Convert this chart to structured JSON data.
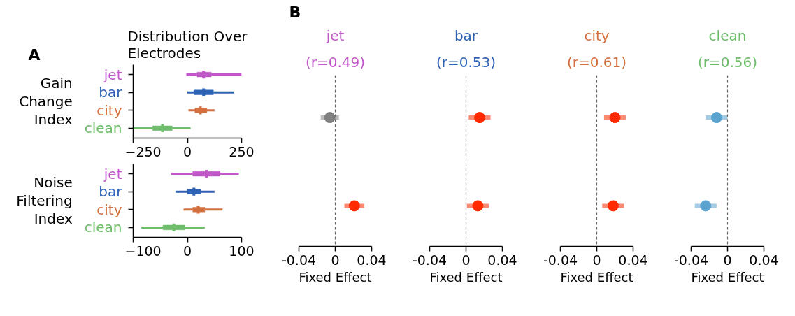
{
  "chart_data": [
    {
      "type": "box",
      "orientation": "horizontal",
      "title": "Distribution Over Electrodes",
      "ylabel": "Gain Change Index",
      "annotations": [
        "A"
      ],
      "categories": [
        "jet",
        "bar",
        "city",
        "clean"
      ],
      "colors": [
        "#c157c9",
        "#2f63b5",
        "#d4703f",
        "#6dbd6a"
      ],
      "boxes": [
        {
          "low": -5,
          "q1": 45,
          "median": 75,
          "q3": 110,
          "high": 250
        },
        {
          "low": 0,
          "q1": 30,
          "median": 75,
          "q3": 120,
          "high": 215
        },
        {
          "low": 5,
          "q1": 35,
          "median": 60,
          "q3": 90,
          "high": 125
        },
        {
          "low": -250,
          "q1": -160,
          "median": -115,
          "q3": -70,
          "high": 15
        }
      ],
      "xlim": [
        -250,
        250
      ],
      "xticks": [
        {
          "value": -250,
          "label": "−250"
        },
        0,
        250
      ]
    },
    {
      "type": "box",
      "orientation": "horizontal",
      "ylabel": "Noise Filtering Index",
      "categories": [
        "jet",
        "bar",
        "city",
        "clean"
      ],
      "colors": [
        "#c157c9",
        "#2f63b5",
        "#d4703f",
        "#6dbd6a"
      ],
      "boxes": [
        {
          "low": -30,
          "q1": 10,
          "median": 35,
          "q3": 60,
          "high": 95
        },
        {
          "low": -22,
          "q1": 0,
          "median": 12,
          "q3": 25,
          "high": 50
        },
        {
          "low": -7,
          "q1": 10,
          "median": 20,
          "q3": 32,
          "high": 65
        },
        {
          "low": -85,
          "q1": -45,
          "median": -25,
          "q3": -5,
          "high": 32
        }
      ],
      "xlim": [
        -100,
        100
      ],
      "xticks": [
        {
          "value": -100,
          "label": "−100"
        },
        0,
        100
      ]
    },
    {
      "type": "scatter",
      "orientation": "horizontal",
      "marker": "circle",
      "title": "jet",
      "subtitle": "(r=0.49)",
      "xlabel": "Fixed Effect",
      "annotations": [
        "B"
      ],
      "categories": [
        null,
        null
      ],
      "values": [
        -0.006,
        0.021
      ],
      "colors": [
        "#808080",
        "#ff2a00"
      ],
      "errors": [
        0.01,
        0.011
      ],
      "xlim": [
        -0.04,
        0.04
      ],
      "xticks": [
        -0.04,
        0,
        0.04
      ],
      "tick_labels": "x",
      "ref_lines": [
        {
          "axis": "x",
          "value": 0,
          "color": "#666666",
          "line_style": "dashed"
        }
      ]
    },
    {
      "type": "scatter",
      "orientation": "horizontal",
      "marker": "circle",
      "title": "bar",
      "subtitle": "(r=0.53)",
      "xlabel": "Fixed Effect",
      "categories": [
        null,
        null
      ],
      "values": [
        0.015,
        0.013
      ],
      "colors": [
        "#ff2a00",
        "#ff2a00"
      ],
      "errors": [
        0.012,
        0.012
      ],
      "xlim": [
        -0.04,
        0.04
      ],
      "xticks": [
        -0.04,
        0,
        0.04
      ],
      "tick_labels": "x",
      "ref_lines": [
        {
          "axis": "x",
          "value": 0,
          "color": "#666666",
          "line_style": "dashed"
        }
      ]
    },
    {
      "type": "scatter",
      "orientation": "horizontal",
      "marker": "circle",
      "title": "city",
      "subtitle": "(r=0.61)",
      "xlabel": "Fixed Effect",
      "categories": [
        null,
        null
      ],
      "values": [
        0.02,
        0.018
      ],
      "colors": [
        "#ff2a00",
        "#ff2a00"
      ],
      "errors": [
        0.012,
        0.012
      ],
      "xlim": [
        -0.04,
        0.04
      ],
      "xticks": [
        -0.04,
        0,
        0.04
      ],
      "tick_labels": "x",
      "ref_lines": [
        {
          "axis": "x",
          "value": 0,
          "color": "#666666",
          "line_style": "dashed"
        }
      ]
    },
    {
      "type": "scatter",
      "orientation": "horizontal",
      "marker": "circle",
      "title": "clean",
      "subtitle": "(r=0.56)",
      "xlabel": "Fixed Effect",
      "categories": [
        null,
        null
      ],
      "values": [
        -0.012,
        -0.024
      ],
      "colors": [
        "#5ba3cf",
        "#5ba3cf"
      ],
      "errors": [
        0.012,
        0.012
      ],
      "xlim": [
        -0.04,
        0.04
      ],
      "xticks": [
        -0.04,
        0,
        0.04
      ],
      "tick_labels": "x",
      "ref_lines": [
        {
          "axis": "x",
          "value": 0,
          "color": "#666666",
          "line_style": "dashed"
        }
      ]
    }
  ]
}
